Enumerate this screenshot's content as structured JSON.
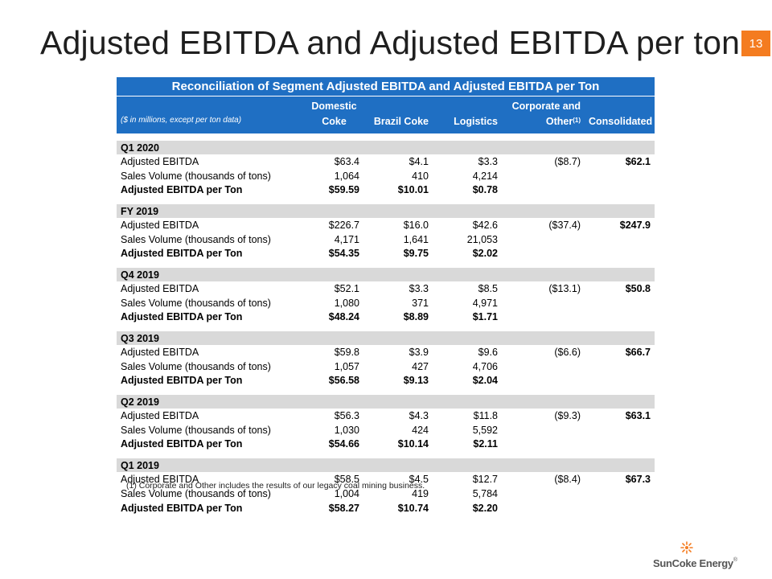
{
  "slide": {
    "title": "Adjusted EBITDA and Adjusted EBITDA per ton",
    "page_number": "13",
    "footnote": "(1) Corporate and Other includes the results of our legacy coal mining business.",
    "logo_text": "SunCoke Energy",
    "logo_reg": "®",
    "accent_color": "#1f6fc3",
    "page_badge_color": "#f47c20"
  },
  "table": {
    "title": "Reconciliation of Segment Adjusted EBITDA and Adjusted EBITDA per Ton",
    "units_note": "($ in millions, except per ton data)",
    "columns": {
      "domestic_line1": "Domestic",
      "domestic_line2": "Coke",
      "brazil": "Brazil Coke",
      "logistics": "Logistics",
      "corporate_line1": "Corporate and",
      "corporate_line2": "Other",
      "corporate_sup": "(1)",
      "consolidated": "Consolidated"
    },
    "sections": [
      {
        "name": "Q1 2020",
        "rows": [
          {
            "label": "Adjusted EBITDA",
            "domestic": "$63.4",
            "brazil": "$4.1",
            "logistics": "$3.3",
            "corporate": "($8.7)",
            "consolidated": "$62.1"
          },
          {
            "label": "Sales Volume (thousands of tons)",
            "domestic": "1,064",
            "brazil": "410",
            "logistics": "4,214",
            "corporate": "",
            "consolidated": ""
          },
          {
            "label": "Adjusted EBITDA per Ton",
            "domestic": "$59.59",
            "brazil": "$10.01",
            "logistics": "$0.78",
            "corporate": "",
            "consolidated": ""
          }
        ]
      },
      {
        "name": "FY 2019",
        "rows": [
          {
            "label": "Adjusted EBITDA",
            "domestic": "$226.7",
            "brazil": "$16.0",
            "logistics": "$42.6",
            "corporate": "($37.4)",
            "consolidated": "$247.9"
          },
          {
            "label": "Sales Volume (thousands of tons)",
            "domestic": "4,171",
            "brazil": "1,641",
            "logistics": "21,053",
            "corporate": "",
            "consolidated": ""
          },
          {
            "label": "Adjusted EBITDA per Ton",
            "domestic": "$54.35",
            "brazil": "$9.75",
            "logistics": "$2.02",
            "corporate": "",
            "consolidated": ""
          }
        ]
      },
      {
        "name": "Q4 2019",
        "rows": [
          {
            "label": "Adjusted EBITDA",
            "domestic": "$52.1",
            "brazil": "$3.3",
            "logistics": "$8.5",
            "corporate": "($13.1)",
            "consolidated": "$50.8"
          },
          {
            "label": "Sales Volume (thousands of tons)",
            "domestic": "1,080",
            "brazil": "371",
            "logistics": "4,971",
            "corporate": "",
            "consolidated": ""
          },
          {
            "label": "Adjusted EBITDA per Ton",
            "domestic": "$48.24",
            "brazil": "$8.89",
            "logistics": "$1.71",
            "corporate": "",
            "consolidated": ""
          }
        ]
      },
      {
        "name": "Q3 2019",
        "rows": [
          {
            "label": "Adjusted EBITDA",
            "domestic": "$59.8",
            "brazil": "$3.9",
            "logistics": "$9.6",
            "corporate": "($6.6)",
            "consolidated": "$66.7"
          },
          {
            "label": "Sales Volume (thousands of tons)",
            "domestic": "1,057",
            "brazil": "427",
            "logistics": "4,706",
            "corporate": "",
            "consolidated": ""
          },
          {
            "label": "Adjusted EBITDA per Ton",
            "domestic": "$56.58",
            "brazil": "$9.13",
            "logistics": "$2.04",
            "corporate": "",
            "consolidated": ""
          }
        ]
      },
      {
        "name": "Q2 2019",
        "rows": [
          {
            "label": "Adjusted EBITDA",
            "domestic": "$56.3",
            "brazil": "$4.3",
            "logistics": "$11.8",
            "corporate": "($9.3)",
            "consolidated": "$63.1"
          },
          {
            "label": "Sales Volume (thousands of tons)",
            "domestic": "1,030",
            "brazil": "424",
            "logistics": "5,592",
            "corporate": "",
            "consolidated": ""
          },
          {
            "label": "Adjusted EBITDA per Ton",
            "domestic": "$54.66",
            "brazil": "$10.14",
            "logistics": "$2.11",
            "corporate": "",
            "consolidated": ""
          }
        ]
      },
      {
        "name": "Q1 2019",
        "rows": [
          {
            "label": "Adjusted EBITDA",
            "domestic": "$58.5",
            "brazil": "$4.5",
            "logistics": "$12.7",
            "corporate": "($8.4)",
            "consolidated": "$67.3"
          },
          {
            "label": "Sales Volume (thousands of tons)",
            "domestic": "1,004",
            "brazil": "419",
            "logistics": "5,784",
            "corporate": "",
            "consolidated": ""
          },
          {
            "label": "Adjusted EBITDA per Ton",
            "domestic": "$58.27",
            "brazil": "$10.74",
            "logistics": "$2.20",
            "corporate": "",
            "consolidated": ""
          }
        ]
      }
    ]
  }
}
